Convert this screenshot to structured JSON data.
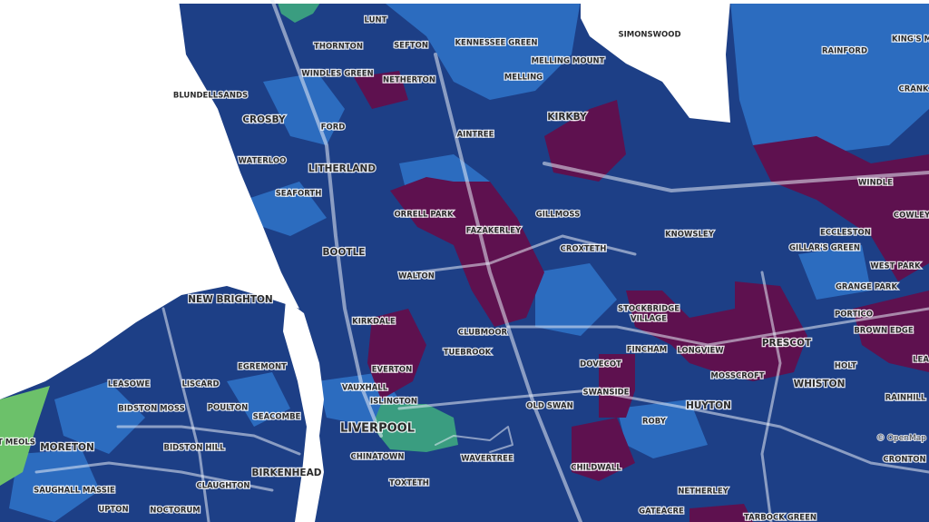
{
  "places": [
    "LUNT",
    "SEFTON",
    "THORNTON",
    "KENNESSEE GREEN",
    "SIMONSWOOD",
    "KING'S M",
    "RAINFORD",
    "MELLING MOUNT",
    "WINDLES GREEN",
    "NETHERTON",
    "MELLING",
    "CRANK",
    "BLUNDELLSANDS",
    "CROSBY",
    "KIRKBY",
    "FORD",
    "AINTREE",
    "WATERLOO",
    "LITHERLAND",
    "WINDLE",
    "SEAFORTH",
    "ORRELL PARK",
    "GILLMOSS",
    "COWLEY",
    "FAZAKERLEY",
    "ECCLESTON",
    "KNOWSLEY",
    "BOOTLE",
    "CROXTETH",
    "GILLAR'S GREEN",
    "WEST PARK",
    "WALTON",
    "GRANGE PARK",
    "NEW BRIGHTON",
    "STOCKBRIDGE",
    "VILLAGE",
    "PORTICO",
    "KIRKDALE",
    "CLUBMOOR",
    "BROWN EDGE",
    "PRESCOT",
    "FINCHAM",
    "LONGVIEW",
    "TUEBROOK",
    "LEA",
    "DOVECOT",
    "HOLT",
    "EGREMONT",
    "EVERTON",
    "MOSSCROFT",
    "WHISTON",
    "LEASOWE",
    "LISCARD",
    "VAUXHALL",
    "SWANSIDE",
    "RAINHILL",
    "ISLINGTON",
    "HUYTON",
    "OLD SWAN",
    "BIDSTON MOSS",
    "POULTON",
    "SEACOMBE",
    "ROBY",
    "LIVERPOOL",
    "T MEOLS",
    "MORETON",
    "BIDSTON HILL",
    "CHINATOWN",
    "WAVERTREE",
    "CRONTON",
    "CHILDWALL",
    "BIRKENHEAD",
    "SAUGHALL MASSIE",
    "CLAUGHTON",
    "TOXTETH",
    "NETHERLEY",
    "UPTON",
    "NOCTORUM",
    "GATEACRE",
    "TARBOCK GREEN"
  ],
  "attribution": "© OpenMap"
}
